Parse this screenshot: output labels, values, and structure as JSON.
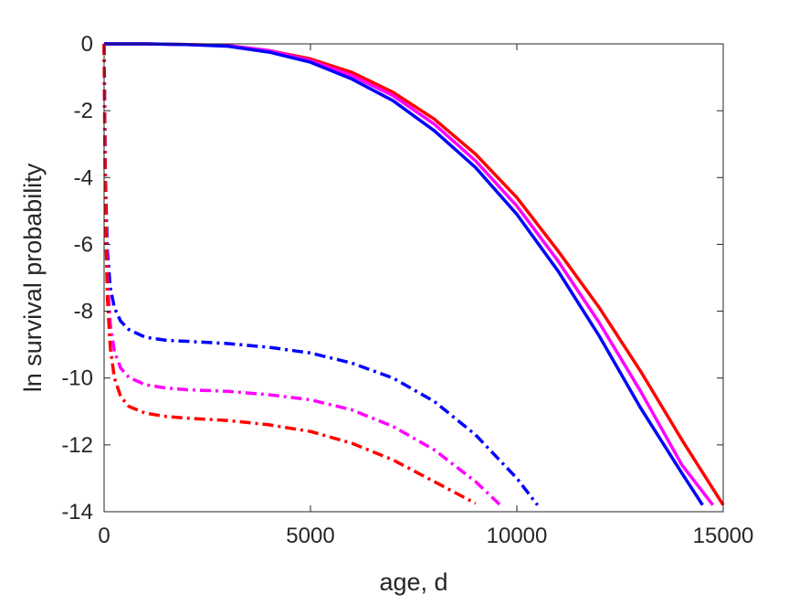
{
  "chart_data": {
    "type": "line",
    "title": "",
    "xlabel": "age, d",
    "ylabel": "ln survival probability",
    "xlim": [
      0,
      15000
    ],
    "ylim": [
      -14,
      0
    ],
    "xticks": [
      0,
      5000,
      10000,
      15000
    ],
    "yticks": [
      0,
      -2,
      -4,
      -6,
      -8,
      -10,
      -12,
      -14
    ],
    "xtick_labels": [
      "0",
      "5000",
      "10000",
      "15000"
    ],
    "ytick_labels": [
      "0",
      "-2",
      "-4",
      "-6",
      "-8",
      "-10",
      "-12",
      "-14"
    ],
    "grid": false,
    "legend": "none",
    "series": [
      {
        "color": "#ff0000",
        "style": "solid",
        "x": [
          0,
          1000,
          2000,
          3000,
          4000,
          5000,
          6000,
          7000,
          8000,
          9000,
          10000,
          11000,
          12000,
          13000,
          14000,
          15000
        ],
        "y": [
          0,
          0,
          -0.02,
          -0.05,
          -0.2,
          -0.45,
          -0.85,
          -1.45,
          -2.25,
          -3.3,
          -4.6,
          -6.2,
          -7.9,
          -9.8,
          -11.85,
          -13.8
        ]
      },
      {
        "color": "#ff00ff",
        "style": "solid",
        "x": [
          0,
          1000,
          2000,
          3000,
          4000,
          5000,
          6000,
          7000,
          8000,
          9000,
          10000,
          11000,
          12000,
          13000,
          14000,
          14750
        ],
        "y": [
          0,
          0,
          -0.02,
          -0.05,
          -0.2,
          -0.5,
          -0.95,
          -1.55,
          -2.4,
          -3.5,
          -4.85,
          -6.5,
          -8.35,
          -10.4,
          -12.6,
          -13.8
        ]
      },
      {
        "color": "#0000ff",
        "style": "solid",
        "x": [
          0,
          1000,
          2000,
          3000,
          4000,
          5000,
          6000,
          7000,
          8000,
          9000,
          10000,
          11000,
          12000,
          13000,
          14000,
          14500
        ],
        "y": [
          0,
          0,
          -0.02,
          -0.07,
          -0.25,
          -0.55,
          -1.05,
          -1.7,
          -2.6,
          -3.7,
          -5.1,
          -6.8,
          -8.75,
          -10.9,
          -12.85,
          -13.8
        ]
      },
      {
        "color": "#0000ff",
        "style": "dashdot",
        "x": [
          0,
          30,
          80,
          150,
          250,
          400,
          600,
          1000,
          1500,
          2000,
          3000,
          4000,
          5000,
          6000,
          7000,
          8000,
          9000,
          10000,
          10500
        ],
        "y": [
          0,
          -4,
          -6.2,
          -7.3,
          -7.9,
          -8.3,
          -8.55,
          -8.78,
          -8.87,
          -8.9,
          -8.97,
          -9.08,
          -9.25,
          -9.55,
          -10.0,
          -10.7,
          -11.7,
          -13.0,
          -13.8
        ]
      },
      {
        "color": "#ff00ff",
        "style": "dashdot",
        "x": [
          0,
          30,
          80,
          150,
          250,
          400,
          600,
          1000,
          1500,
          2000,
          3000,
          4000,
          5000,
          6000,
          7000,
          8000,
          9000,
          9600
        ],
        "y": [
          0,
          -4.5,
          -7.0,
          -8.4,
          -9.2,
          -9.7,
          -9.98,
          -10.2,
          -10.3,
          -10.35,
          -10.4,
          -10.5,
          -10.65,
          -10.95,
          -11.45,
          -12.15,
          -13.1,
          -13.8
        ]
      },
      {
        "color": "#ff0000",
        "style": "dashdot",
        "x": [
          0,
          30,
          80,
          150,
          250,
          400,
          600,
          1000,
          1500,
          2000,
          3000,
          4000,
          5000,
          6000,
          7000,
          8000,
          9000
        ],
        "y": [
          0,
          -5,
          -7.6,
          -9.1,
          -10.0,
          -10.55,
          -10.85,
          -11.05,
          -11.15,
          -11.2,
          -11.27,
          -11.4,
          -11.6,
          -11.95,
          -12.45,
          -13.1,
          -13.75
        ]
      }
    ]
  }
}
